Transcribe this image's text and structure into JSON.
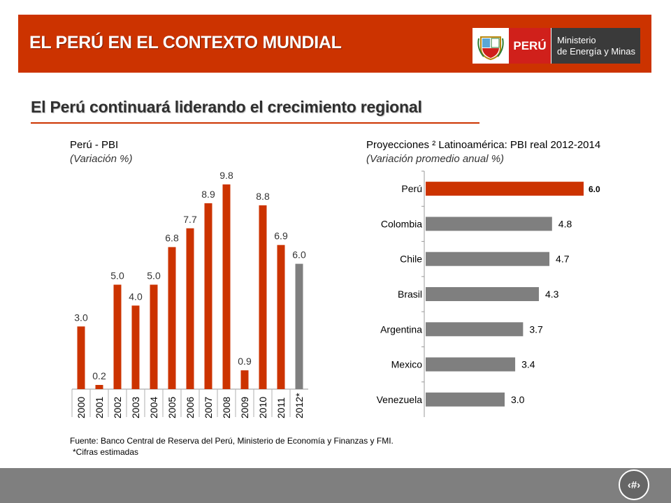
{
  "header": {
    "title": "EL PERÚ EN EL CONTEXTO MUNDIAL",
    "logo_country": "PERÚ",
    "logo_ministry_line1": "Ministerio",
    "logo_ministry_line2": "de Energía y Minas"
  },
  "subtitle": "El Perú continuará liderando el crecimiento regional",
  "colors": {
    "accent": "#cc3300",
    "bar_red": "#cc3300",
    "bar_gray": "#7f7f7f",
    "footer": "#7f7f7f"
  },
  "chart_data": [
    {
      "type": "bar",
      "title": "Perú - PBI",
      "subtitle": "(Variación %)",
      "categories": [
        "2000",
        "2001",
        "2002",
        "2003",
        "2004",
        "2005",
        "2006",
        "2007",
        "2008",
        "2009",
        "2010",
        "2011",
        "2012*"
      ],
      "values": [
        3.0,
        0.2,
        5.0,
        4.0,
        5.0,
        6.8,
        7.7,
        8.9,
        9.8,
        0.9,
        8.8,
        6.9,
        6.0
      ],
      "value_labels": [
        "3.0",
        "0.2",
        "5.0",
        "4.0",
        "5.0",
        "6.8",
        "7.7",
        "8.9",
        "9.8",
        "0.9",
        "8.8",
        "6.9",
        "6.0"
      ],
      "estimated": [
        false,
        false,
        false,
        false,
        false,
        false,
        false,
        false,
        false,
        false,
        false,
        false,
        true
      ],
      "ylim": [
        0,
        10
      ],
      "grid": false
    },
    {
      "type": "bar",
      "orientation": "horizontal",
      "title": "Proyecciones ² Latinoamérica: PBI real 2012-2014",
      "subtitle": "(Variación promedio anual %)",
      "categories": [
        "Perú",
        "Colombia",
        "Chile",
        "Brasil",
        "Argentina",
        "Mexico",
        "Venezuela"
      ],
      "values": [
        6.0,
        4.8,
        4.7,
        4.3,
        3.7,
        3.4,
        3.0
      ],
      "value_labels": [
        "6.0",
        "4.8",
        "4.7",
        "4.3",
        "3.7",
        "3.4",
        "3.0"
      ],
      "highlight": "Perú",
      "xlim": [
        0,
        6.5
      ],
      "grid": false
    }
  ],
  "source": "Fuente: Banco Central de Reserva del Perú, Ministerio de Economía y Finanzas y FMI.",
  "note": "*Cifras estimadas",
  "page_number": "‹#›"
}
